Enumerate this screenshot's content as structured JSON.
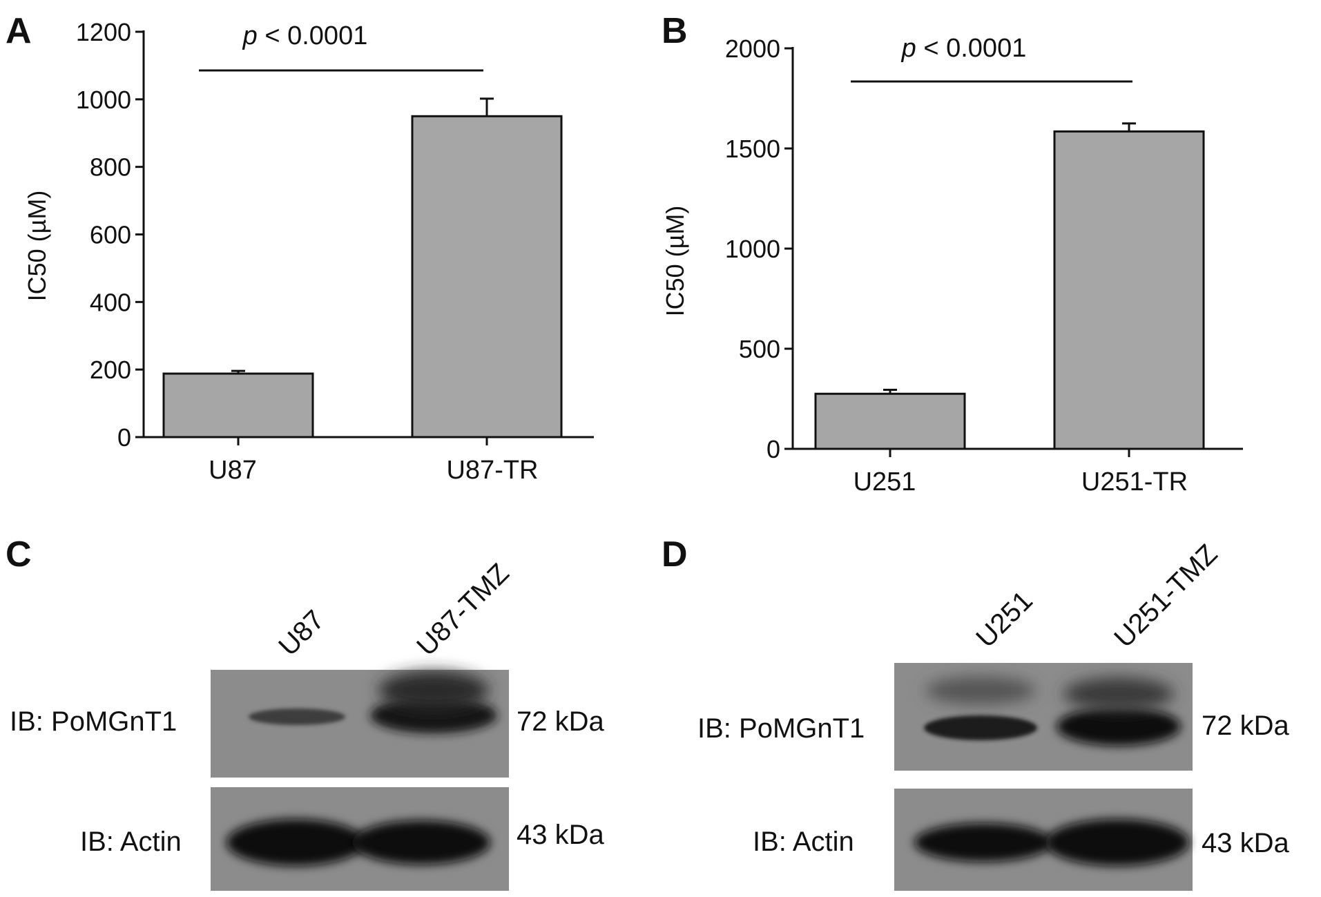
{
  "panels": {
    "A": "A",
    "B": "B",
    "C": "C",
    "D": "D"
  },
  "chart_data": [
    {
      "panel": "A",
      "type": "bar",
      "categories": [
        "U87",
        "U87-TR"
      ],
      "values": [
        188,
        950
      ],
      "errors": [
        8,
        52
      ],
      "ylabel": "IC50  (µM)",
      "yticks": [
        "0",
        "200",
        "400",
        "600",
        "800",
        "1000",
        "1200"
      ],
      "ylim": [
        0,
        1200
      ],
      "annotation": {
        "p_symbol": "p",
        "p_text": " < 0.0001"
      },
      "bar_color": "#a6a6a6"
    },
    {
      "panel": "B",
      "type": "bar",
      "categories": [
        "U251",
        "U251-TR"
      ],
      "values": [
        275,
        1585
      ],
      "errors": [
        20,
        40
      ],
      "ylabel": "IC50  (µM)",
      "yticks": [
        "0",
        "500",
        "1000",
        "1500",
        "2000"
      ],
      "ylim": [
        0,
        2000
      ],
      "annotation": {
        "p_symbol": "p",
        "p_text": " < 0.0001"
      },
      "bar_color": "#a6a6a6"
    }
  ],
  "blots": {
    "C": {
      "lanes": [
        "U87",
        "U87-TMZ"
      ],
      "rows": [
        {
          "label": "IB:  PoMGnT1",
          "size": "72 kDa"
        },
        {
          "label": "IB:  Actin",
          "size": "43 kDa"
        }
      ]
    },
    "D": {
      "lanes": [
        "U251",
        "U251-TMZ"
      ],
      "rows": [
        {
          "label": "IB:  PoMGnT1",
          "size": "72 kDa"
        },
        {
          "label": "IB:  Actin",
          "size": "43 kDa"
        }
      ]
    }
  }
}
